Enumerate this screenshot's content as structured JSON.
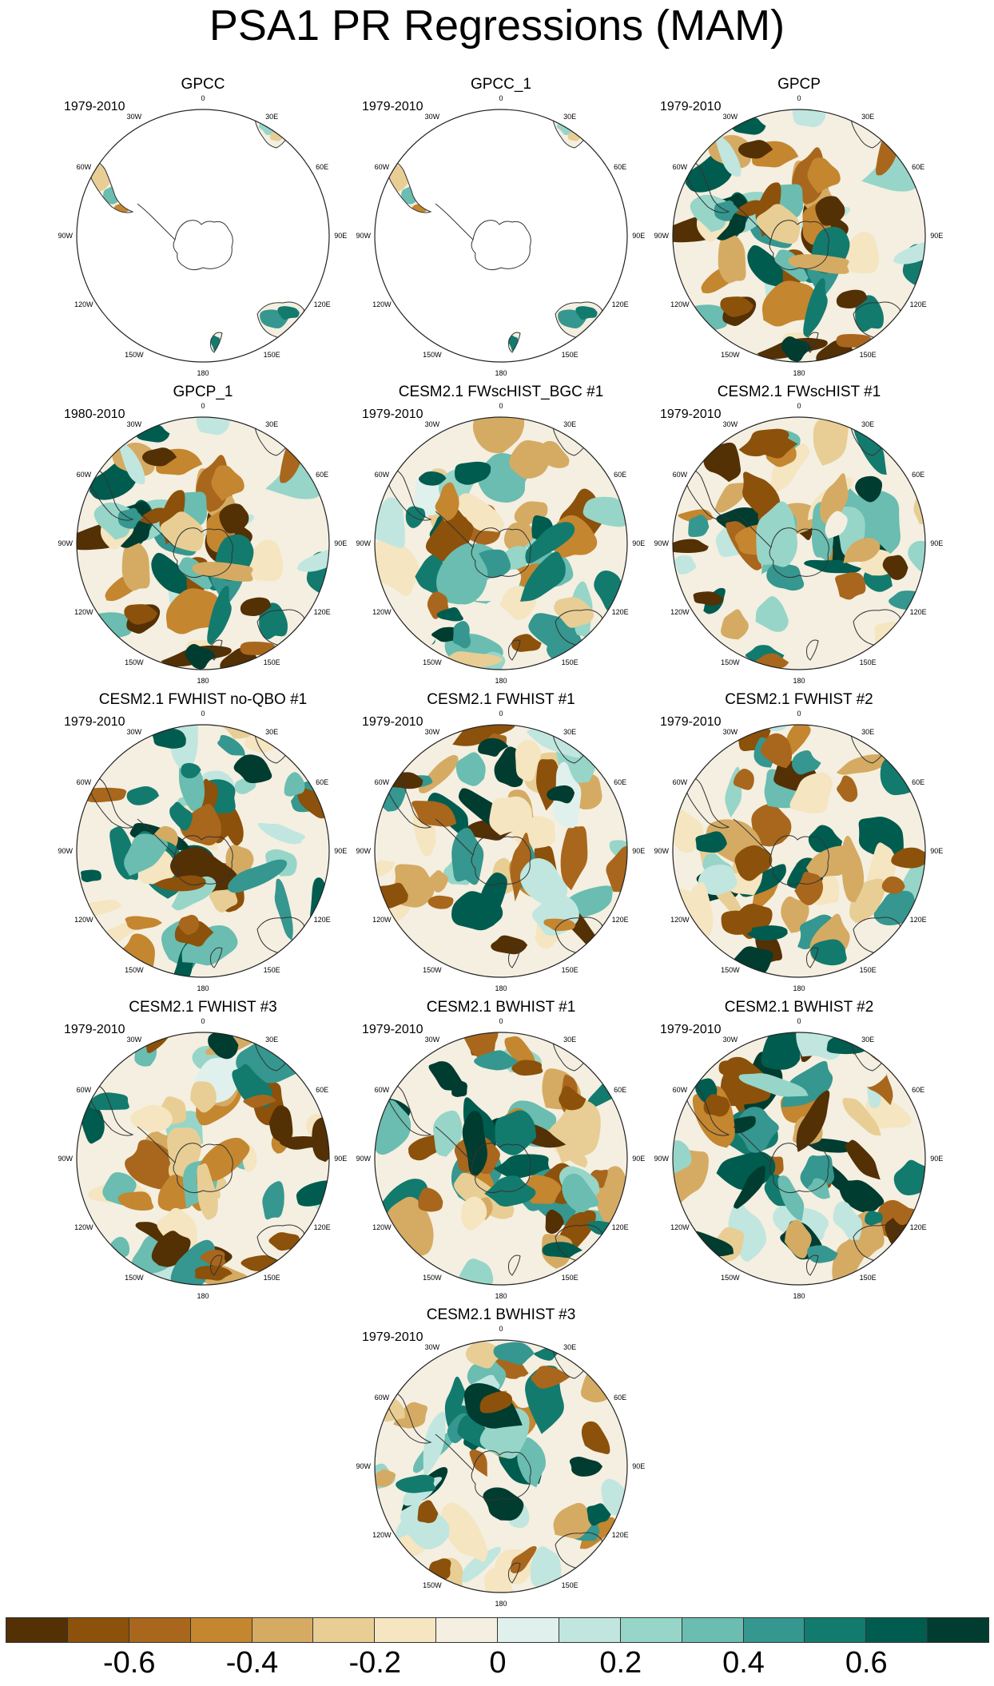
{
  "title": "PSA1 PR Regressions (MAM)",
  "panel_labels": {
    "lon": [
      "0",
      "30E",
      "60E",
      "90E",
      "120E",
      "150E",
      "180",
      "150W",
      "120W",
      "90W",
      "60W",
      "30W"
    ]
  },
  "panels": [
    {
      "title": "GPCC",
      "period": "1979-2010",
      "coverage": "land",
      "pattern": 1
    },
    {
      "title": "GPCC_1",
      "period": "1979-2010",
      "coverage": "land",
      "pattern": 1
    },
    {
      "title": "GPCP",
      "period": "1979-2010",
      "coverage": "full",
      "pattern": 2
    },
    {
      "title": "GPCP_1",
      "period": "1980-2010",
      "coverage": "full",
      "pattern": 2
    },
    {
      "title": "CESM2.1 FWscHIST_BGC #1",
      "period": "1979-2010",
      "coverage": "full",
      "pattern": 3
    },
    {
      "title": "CESM2.1 FWscHIST #1",
      "period": "1979-2010",
      "coverage": "full",
      "pattern": 4
    },
    {
      "title": "CESM2.1 FWHIST no-QBO #1",
      "period": "1979-2010",
      "coverage": "full",
      "pattern": 5
    },
    {
      "title": "CESM2.1 FWHIST #1",
      "period": "1979-2010",
      "coverage": "full",
      "pattern": 6
    },
    {
      "title": "CESM2.1 FWHIST #2",
      "period": "1979-2010",
      "coverage": "full",
      "pattern": 7
    },
    {
      "title": "CESM2.1 FWHIST #3",
      "period": "1979-2010",
      "coverage": "full",
      "pattern": 8
    },
    {
      "title": "CESM2.1 BWHIST #1",
      "period": "1979-2010",
      "coverage": "full",
      "pattern": 9
    },
    {
      "title": "CESM2.1 BWHIST #2",
      "period": "1979-2010",
      "coverage": "full",
      "pattern": 10
    },
    {
      "title": "CESM2.1 BWHIST #3",
      "period": "1979-2010",
      "coverage": "full",
      "pattern": 11
    }
  ],
  "colorbar": {
    "colors": [
      "#543005",
      "#8c510a",
      "#a8671d",
      "#c4862f",
      "#d5ab63",
      "#e8ce94",
      "#f5e5c0",
      "#f4efe1",
      "#e0f0ec",
      "#c0e6df",
      "#97d5c9",
      "#6abdb0",
      "#35978f",
      "#137a6e",
      "#015c50",
      "#003c30"
    ],
    "tick_labels": [
      "-0.6",
      "-0.4",
      "-0.2",
      "0",
      "0.2",
      "0.4",
      "0.6"
    ],
    "tick_values": [
      -0.6,
      -0.4,
      -0.2,
      0,
      0.2,
      0.4,
      0.6
    ],
    "range": [
      -0.8,
      0.8
    ]
  }
}
